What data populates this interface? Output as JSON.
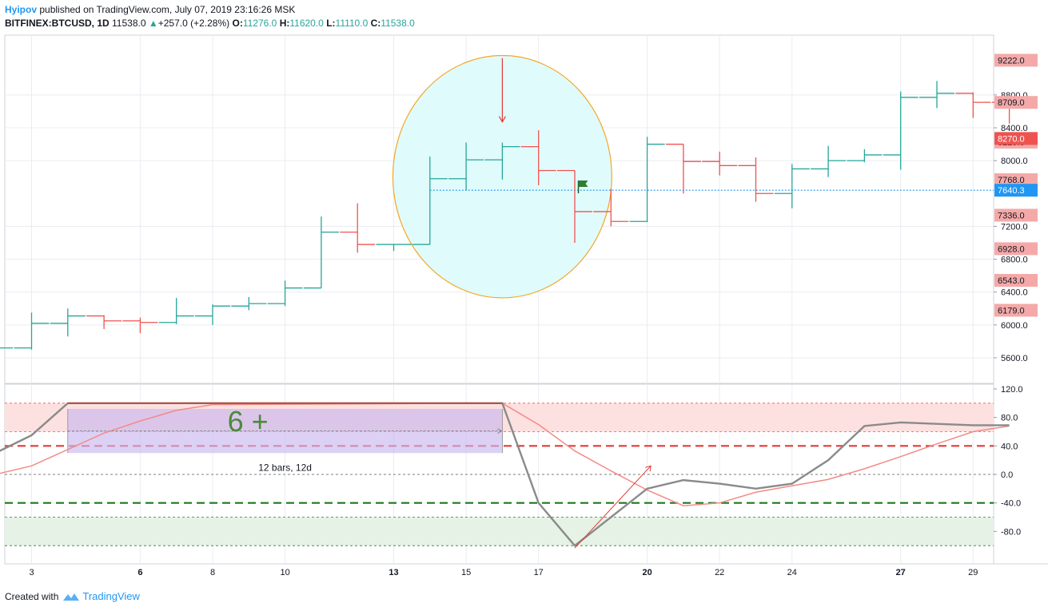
{
  "header": {
    "author": "Hyipov",
    "published": "published on TradingView.com, July 07, 2019 23:16:26 MSK",
    "symbol": "BITFINEX:BTCUSD, 1D",
    "last": "11538.0",
    "change": "+257.0 (+2.28%)",
    "o_label": "O:",
    "o": "11276.0",
    "h_label": "H:",
    "h": "11620.0",
    "l_label": "L:",
    "l": "11110.0",
    "c_label": "C:",
    "c": "11538.0"
  },
  "footer": {
    "created_with": "Created with",
    "brand": "TradingView"
  },
  "colors": {
    "up": "#26a69a",
    "down": "#ef5350",
    "grid": "#e9ecf1",
    "blue": "#2196f3"
  },
  "chart_data": {
    "type": "ohlc",
    "price_axis": {
      "ylim": [
        5400,
        9600
      ],
      "ticks": [
        5600,
        6000,
        6400,
        6800,
        7200,
        8000,
        8400,
        8800
      ],
      "tick_labels": [
        "5600.0",
        "6000.0",
        "6400.0",
        "6800.0",
        "7200.0",
        "8000.0",
        "8400.0",
        "8800.0"
      ],
      "highlight_labels": [
        {
          "value": 9222,
          "text": "9222.0"
        },
        {
          "value": 8709,
          "text": "8709.0"
        },
        {
          "value": 8225,
          "text": "8225.0"
        },
        {
          "value": 7768,
          "text": "7768.0"
        },
        {
          "value": 7336,
          "text": "7336.0"
        },
        {
          "value": 6928,
          "text": "6928.0"
        },
        {
          "value": 6543,
          "text": "6543.0"
        },
        {
          "value": 6179,
          "text": "6179.0"
        }
      ],
      "last_price_label": {
        "value": 8270,
        "text": "8270.0"
      },
      "hline": {
        "value": 7640,
        "text": "7640.3"
      }
    },
    "x_axis": {
      "ticks": [
        {
          "day": 3,
          "label": "3",
          "bold": false
        },
        {
          "day": 6,
          "label": "6",
          "bold": true
        },
        {
          "day": 8,
          "label": "8",
          "bold": false
        },
        {
          "day": 10,
          "label": "10",
          "bold": false
        },
        {
          "day": 13,
          "label": "13",
          "bold": true
        },
        {
          "day": 15,
          "label": "15",
          "bold": false
        },
        {
          "day": 17,
          "label": "17",
          "bold": false
        },
        {
          "day": 20,
          "label": "20",
          "bold": true
        },
        {
          "day": 22,
          "label": "22",
          "bold": false
        },
        {
          "day": 24,
          "label": "24",
          "bold": false
        },
        {
          "day": 27,
          "label": "27",
          "bold": true
        },
        {
          "day": 29,
          "label": "29",
          "bold": false
        }
      ]
    },
    "bars": [
      {
        "day": 2,
        "o": 5550,
        "h": 5850,
        "l": 5420,
        "c": 5720
      },
      {
        "day": 3,
        "o": 5720,
        "h": 6150,
        "l": 5700,
        "c": 6020
      },
      {
        "day": 4,
        "o": 6020,
        "h": 6200,
        "l": 5860,
        "c": 6110
      },
      {
        "day": 5,
        "o": 6110,
        "h": 6120,
        "l": 5950,
        "c": 6050
      },
      {
        "day": 6,
        "o": 6050,
        "h": 6090,
        "l": 5900,
        "c": 6030
      },
      {
        "day": 7,
        "o": 6030,
        "h": 6330,
        "l": 6010,
        "c": 6110
      },
      {
        "day": 8,
        "o": 6110,
        "h": 6250,
        "l": 6000,
        "c": 6230
      },
      {
        "day": 9,
        "o": 6230,
        "h": 6340,
        "l": 6180,
        "c": 6260
      },
      {
        "day": 10,
        "o": 6260,
        "h": 6540,
        "l": 6230,
        "c": 6450
      },
      {
        "day": 11,
        "o": 6450,
        "h": 7320,
        "l": 6450,
        "c": 7130
      },
      {
        "day": 12,
        "o": 7130,
        "h": 7480,
        "l": 6880,
        "c": 6980
      },
      {
        "day": 13,
        "o": 6980,
        "h": 6980,
        "l": 6900,
        "c": 6980
      },
      {
        "day": 14,
        "o": 6980,
        "h": 8050,
        "l": 6980,
        "c": 7780
      },
      {
        "day": 15,
        "o": 7780,
        "h": 8220,
        "l": 7640,
        "c": 8010
      },
      {
        "day": 16,
        "o": 8010,
        "h": 8220,
        "l": 7770,
        "c": 8170
      },
      {
        "day": 17,
        "o": 8170,
        "h": 8370,
        "l": 7700,
        "c": 7880
      },
      {
        "day": 18,
        "o": 7880,
        "h": 7880,
        "l": 7000,
        "c": 7380
      },
      {
        "day": 19,
        "o": 7380,
        "h": 7660,
        "l": 7200,
        "c": 7260
      },
      {
        "day": 20,
        "o": 7260,
        "h": 8290,
        "l": 7250,
        "c": 8200
      },
      {
        "day": 21,
        "o": 8200,
        "h": 8200,
        "l": 7600,
        "c": 7990
      },
      {
        "day": 22,
        "o": 7990,
        "h": 8110,
        "l": 7820,
        "c": 7940
      },
      {
        "day": 23,
        "o": 7940,
        "h": 8040,
        "l": 7500,
        "c": 7600
      },
      {
        "day": 24,
        "o": 7600,
        "h": 7960,
        "l": 7420,
        "c": 7900
      },
      {
        "day": 25,
        "o": 7900,
        "h": 8180,
        "l": 7800,
        "c": 8000
      },
      {
        "day": 26,
        "o": 8000,
        "h": 8140,
        "l": 7980,
        "c": 8070
      },
      {
        "day": 27,
        "o": 8070,
        "h": 8840,
        "l": 7890,
        "c": 8770
      },
      {
        "day": 28,
        "o": 8770,
        "h": 8970,
        "l": 8640,
        "c": 8820
      },
      {
        "day": 29,
        "o": 8820,
        "h": 8830,
        "l": 8520,
        "c": 8710
      },
      {
        "day": 30,
        "o": 8710,
        "h": 8770,
        "l": 8450,
        "c": 8700
      }
    ],
    "oscillator": {
      "ylim": [
        -100,
        120
      ],
      "ticks": [
        120,
        80,
        40,
        0,
        -40,
        -80
      ],
      "tick_labels": [
        "120.0",
        "80.0",
        "40.0",
        "0.0",
        "-40.0",
        "-80.0"
      ],
      "overbought_zone": [
        60,
        100
      ],
      "oversold_zone": [
        -100,
        -60
      ],
      "upper_level": 40,
      "lower_level": -40,
      "main": [
        {
          "day": 2,
          "v": 30
        },
        {
          "day": 3,
          "v": 55
        },
        {
          "day": 4,
          "v": 100
        },
        {
          "day": 16,
          "v": 100
        },
        {
          "day": 17,
          "v": -40
        },
        {
          "day": 18,
          "v": -100
        },
        {
          "day": 19,
          "v": -60
        },
        {
          "day": 20,
          "v": -20
        },
        {
          "day": 21,
          "v": -8
        },
        {
          "day": 22,
          "v": -13
        },
        {
          "day": 23,
          "v": -20
        },
        {
          "day": 24,
          "v": -13
        },
        {
          "day": 25,
          "v": 20
        },
        {
          "day": 26,
          "v": 68
        },
        {
          "day": 27,
          "v": 73
        },
        {
          "day": 28,
          "v": 71
        },
        {
          "day": 29,
          "v": 69
        },
        {
          "day": 30,
          "v": 69
        }
      ],
      "signal": [
        {
          "day": 2,
          "v": 0
        },
        {
          "day": 3,
          "v": 12
        },
        {
          "day": 4,
          "v": 35
        },
        {
          "day": 5,
          "v": 58
        },
        {
          "day": 6,
          "v": 75
        },
        {
          "day": 7,
          "v": 90
        },
        {
          "day": 8,
          "v": 98
        },
        {
          "day": 16,
          "v": 100
        },
        {
          "day": 17,
          "v": 70
        },
        {
          "day": 18,
          "v": 33
        },
        {
          "day": 19,
          "v": 5
        },
        {
          "day": 20,
          "v": -22
        },
        {
          "day": 21,
          "v": -44
        },
        {
          "day": 22,
          "v": -40
        },
        {
          "day": 23,
          "v": -25
        },
        {
          "day": 24,
          "v": -16
        },
        {
          "day": 25,
          "v": -7
        },
        {
          "day": 26,
          "v": 8
        },
        {
          "day": 27,
          "v": 25
        },
        {
          "day": 28,
          "v": 43
        },
        {
          "day": 29,
          "v": 60
        },
        {
          "day": 30,
          "v": 68
        }
      ],
      "range_box": {
        "day_start": 4,
        "day_end": 16,
        "v_top": 92,
        "v_bottom": 30,
        "note": "12 bars, 12d",
        "marker": "6 +"
      }
    },
    "annotations": {
      "ellipse": {
        "day_start": 13,
        "day_end": 19,
        "price_top": 9280,
        "price_bottom": 6330
      },
      "arrow_down": {
        "day": 16,
        "price_from": 9150,
        "price_to": 8500
      },
      "flag": {
        "day": 18.1,
        "price": 7700
      },
      "osc_arrow": {
        "day_from": 18,
        "v_from": -100,
        "day_to": 20.1,
        "v_to": 12
      }
    }
  }
}
